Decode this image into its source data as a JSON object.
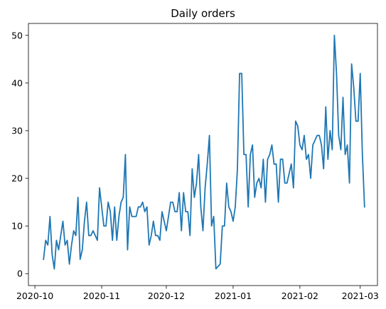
{
  "chart_data": {
    "type": "line",
    "title": "Daily orders",
    "xlabel": "",
    "ylabel": "",
    "xlim": [
      "2020-09-28",
      "2021-03-09"
    ],
    "ylim": [
      -2.5,
      52.5
    ],
    "grid": false,
    "x_ticks": [
      "2020-10",
      "2020-11",
      "2020-12",
      "2021-01",
      "2021-02",
      "2021-03"
    ],
    "y_ticks": [
      0,
      10,
      20,
      30,
      40,
      50
    ],
    "series": [
      {
        "color": "#1f77b4",
        "x": [
          "2020-10-05",
          "2020-10-06",
          "2020-10-07",
          "2020-10-08",
          "2020-10-09",
          "2020-10-10",
          "2020-10-11",
          "2020-10-12",
          "2020-10-13",
          "2020-10-14",
          "2020-10-15",
          "2020-10-16",
          "2020-10-17",
          "2020-10-18",
          "2020-10-19",
          "2020-10-20",
          "2020-10-21",
          "2020-10-22",
          "2020-10-23",
          "2020-10-24",
          "2020-10-25",
          "2020-10-26",
          "2020-10-27",
          "2020-10-28",
          "2020-10-29",
          "2020-10-30",
          "2020-10-31",
          "2020-11-01",
          "2020-11-02",
          "2020-11-03",
          "2020-11-04",
          "2020-11-05",
          "2020-11-06",
          "2020-11-07",
          "2020-11-08",
          "2020-11-09",
          "2020-11-10",
          "2020-11-11",
          "2020-11-12",
          "2020-11-13",
          "2020-11-14",
          "2020-11-15",
          "2020-11-16",
          "2020-11-17",
          "2020-11-18",
          "2020-11-19",
          "2020-11-20",
          "2020-11-21",
          "2020-11-22",
          "2020-11-23",
          "2020-11-24",
          "2020-11-25",
          "2020-11-26",
          "2020-11-27",
          "2020-11-28",
          "2020-11-29",
          "2020-11-30",
          "2020-12-01",
          "2020-12-02",
          "2020-12-03",
          "2020-12-04",
          "2020-12-05",
          "2020-12-06",
          "2020-12-07",
          "2020-12-08",
          "2020-12-09",
          "2020-12-10",
          "2020-12-11",
          "2020-12-12",
          "2020-12-13",
          "2020-12-14",
          "2020-12-15",
          "2020-12-16",
          "2020-12-17",
          "2020-12-18",
          "2020-12-19",
          "2020-12-20",
          "2020-12-21",
          "2020-12-22",
          "2020-12-23",
          "2020-12-24",
          "2020-12-25",
          "2020-12-26",
          "2020-12-27",
          "2020-12-28",
          "2020-12-29",
          "2020-12-30",
          "2020-12-31",
          "2021-01-01",
          "2021-01-02",
          "2021-01-03",
          "2021-01-04",
          "2021-01-05",
          "2021-01-06",
          "2021-01-07",
          "2021-01-08",
          "2021-01-09",
          "2021-01-10",
          "2021-01-11",
          "2021-01-12",
          "2021-01-13",
          "2021-01-14",
          "2021-01-15",
          "2021-01-16",
          "2021-01-17",
          "2021-01-18",
          "2021-01-19",
          "2021-01-20",
          "2021-01-21",
          "2021-01-22",
          "2021-01-23",
          "2021-01-24",
          "2021-01-25",
          "2021-01-26",
          "2021-01-27",
          "2021-01-28",
          "2021-01-29",
          "2021-01-30",
          "2021-01-31",
          "2021-02-01",
          "2021-02-02",
          "2021-02-03",
          "2021-02-04",
          "2021-02-05",
          "2021-02-06",
          "2021-02-07",
          "2021-02-08",
          "2021-02-09",
          "2021-02-10",
          "2021-02-11",
          "2021-02-12",
          "2021-02-13",
          "2021-02-14",
          "2021-02-15",
          "2021-02-16",
          "2021-02-17",
          "2021-02-18",
          "2021-02-19",
          "2021-02-20",
          "2021-02-21",
          "2021-02-22",
          "2021-02-23",
          "2021-02-24",
          "2021-02-25",
          "2021-02-26",
          "2021-02-27",
          "2021-02-28",
          "2021-03-01",
          "2021-03-02",
          "2021-03-03"
        ],
        "values": [
          3,
          7,
          6,
          12,
          4,
          1,
          7,
          5,
          8,
          11,
          6,
          7,
          2,
          6,
          9,
          8,
          16,
          3,
          5,
          11,
          15,
          8,
          8,
          9,
          8,
          7,
          18,
          14,
          10,
          10,
          15,
          13,
          7,
          14,
          7,
          12,
          15,
          16,
          25,
          5,
          14,
          12,
          12,
          12,
          14,
          14,
          15,
          13,
          14,
          6,
          8,
          11,
          8,
          8,
          7,
          13,
          11,
          9,
          12,
          15,
          15,
          13,
          13,
          17,
          9,
          17,
          13,
          13,
          8,
          22,
          16,
          19,
          25,
          14,
          9,
          18,
          23,
          29,
          10,
          12,
          1,
          1.5,
          2,
          10,
          10,
          19,
          14,
          13,
          11,
          14,
          22,
          42,
          42,
          25,
          25,
          14,
          25,
          27,
          16,
          19,
          20,
          18,
          24,
          15,
          24,
          25,
          27,
          23,
          23,
          15,
          24,
          24,
          19,
          19,
          21,
          23,
          18,
          32,
          31,
          27,
          26,
          29,
          24,
          25,
          20,
          27,
          28,
          29,
          29,
          27,
          22,
          35,
          24,
          30,
          26,
          50,
          42,
          29,
          26,
          37,
          25,
          27,
          19,
          44,
          39,
          32,
          32,
          42,
          25,
          14
        ]
      }
    ]
  }
}
